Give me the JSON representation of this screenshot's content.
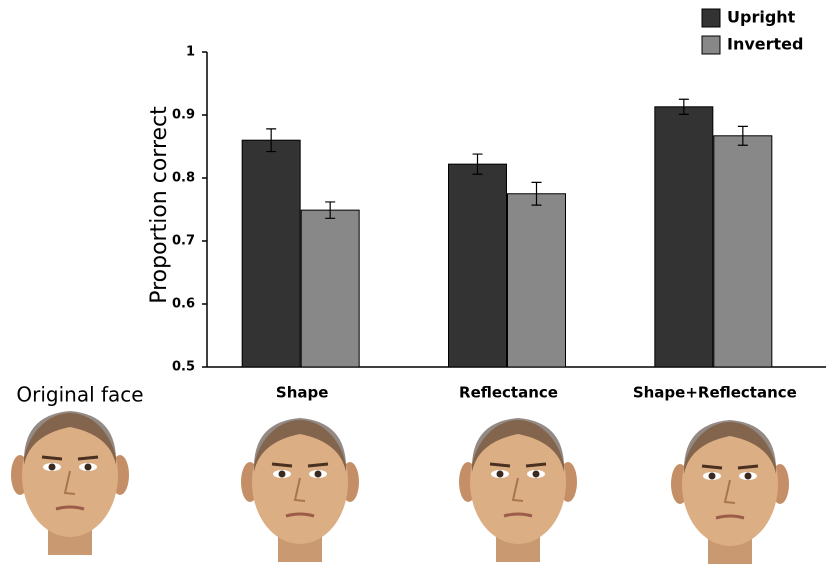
{
  "chart_data": {
    "type": "bar",
    "y_label": "Proportion correct",
    "categories": [
      "Shape",
      "Reflectance",
      "Shape+Reflectance"
    ],
    "series": [
      {
        "name": "Upright",
        "color": "#333333",
        "values": [
          0.86,
          0.822,
          0.913
        ],
        "errors": [
          0.018,
          0.016,
          0.012
        ]
      },
      {
        "name": "Inverted",
        "color": "#888888",
        "values": [
          0.749,
          0.775,
          0.867
        ],
        "errors": [
          0.013,
          0.018,
          0.015
        ]
      }
    ],
    "ylim": [
      0.5,
      1
    ],
    "yticks": [
      0.5,
      0.6,
      0.7,
      0.8,
      0.9,
      1
    ],
    "legend": "top-right",
    "annotation": "Original face"
  }
}
